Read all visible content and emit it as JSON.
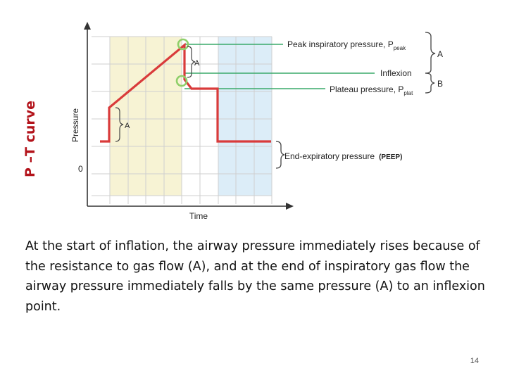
{
  "slide": {
    "title": "P –T curve",
    "caption": "At the start of inflation, the airway pressure immediately rises because of the resistance to gas flow (A), and at the end of inspiratory gas flow the airway pressure immediately falls by the same pressure (A) to an inflexion point.",
    "page_number": "14"
  },
  "diagram": {
    "y_axis_label": "Pressure",
    "x_axis_label": "Time",
    "zero_label": "0",
    "peak_label": "Peak inspiratory pressure, P",
    "peak_sub": "peak",
    "inflexion_label": "Inflexion",
    "plateau_label": "Plateau pressure, P",
    "plateau_sub": "plat",
    "peep_label": "End-expiratory pressure",
    "peep_abbrev": "(PEEP)",
    "brace_a_top": "A",
    "brace_b": "B",
    "marker_a_rise": "A",
    "marker_a_fall": "A",
    "colors": {
      "curve": "#d93b3b",
      "marker": "#8fcf6a",
      "leader": "#3aaa6a",
      "inspiration_band": "#f7f3d4",
      "expiration_band": "#dcedf8",
      "grid": "#cfcfcf",
      "title": "#b3131b"
    }
  }
}
